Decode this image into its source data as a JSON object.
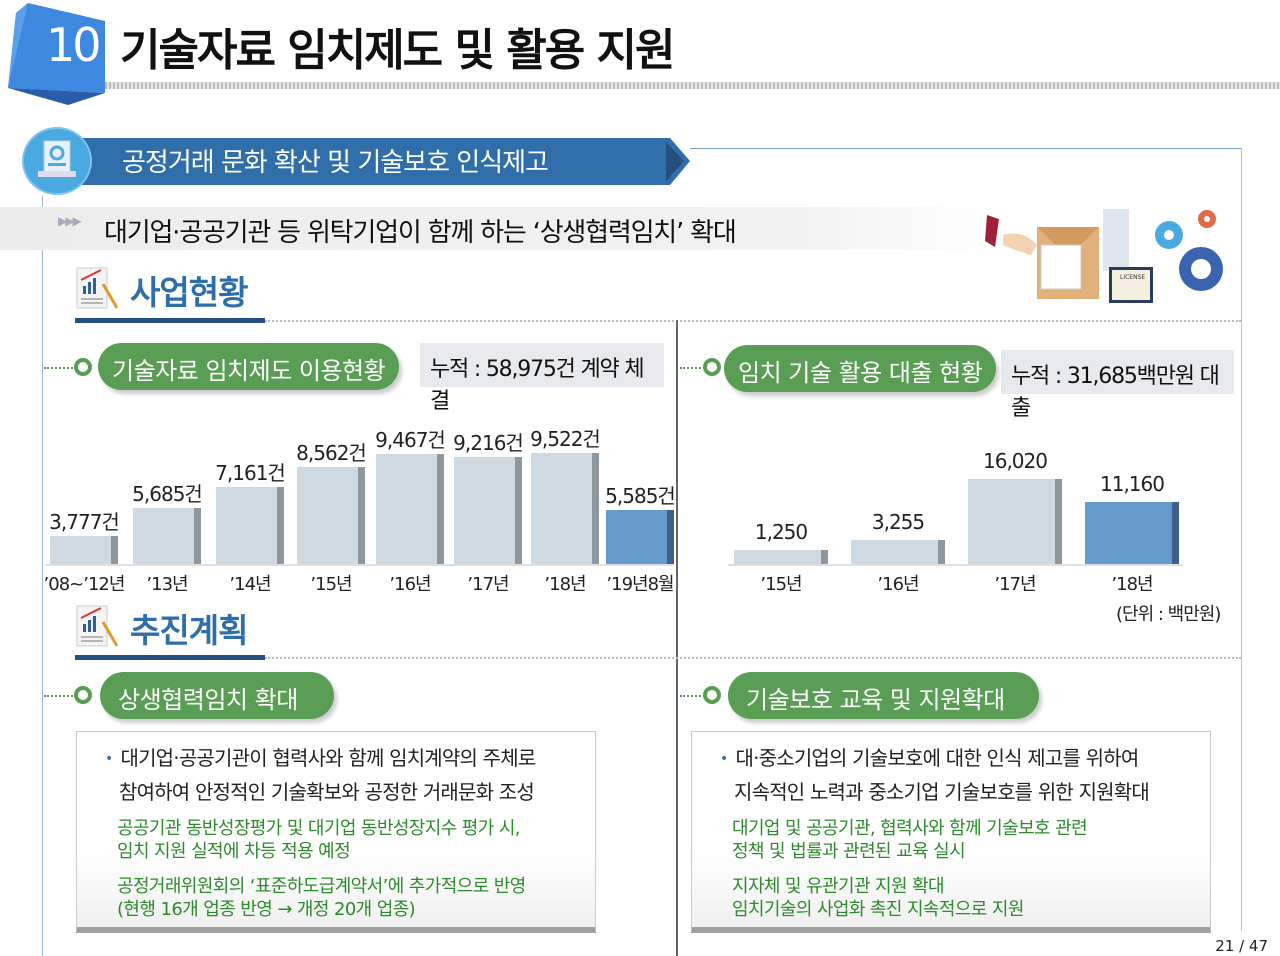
{
  "header": {
    "section_number": "10",
    "title": "기술자료 임치제도 및 활용 지원"
  },
  "banner": {
    "title": "공정거래 문화 확산 및 기술보호 인식제고",
    "icon": "document-chart-icon"
  },
  "subtitle": {
    "arrows": "▶▶▶",
    "text": "대기업·공공기관 등 위탁기업이 함께 하는 ‘상생협력임치’ 확대"
  },
  "illustration": {
    "label": "LICENSE",
    "icon": "license-gears-illustration"
  },
  "status_section": {
    "title": "사업현황"
  },
  "plan_section": {
    "title": "추진계획"
  },
  "colors": {
    "accent_blue": "#2f6ea8",
    "green": "#5a9e55",
    "highlight_bar": "#6699cc",
    "bar": "#cfd9e2"
  },
  "chart_data": [
    {
      "type": "bar",
      "title": "기술자료 임치제도 이용현황",
      "summary": "누적 : 58,975건 계약 체결",
      "categories": [
        "’08~’12년",
        "’13년",
        "’14년",
        "’15년",
        "’16년",
        "’17년",
        "’18년",
        "’19년8월"
      ],
      "values": [
        3777,
        5685,
        7161,
        8562,
        9467,
        9216,
        9522,
        5585
      ],
      "labels": [
        "3,777건",
        "5,685건",
        "7,161건",
        "8,562건",
        "9,467건",
        "9,216건",
        "9,522건",
        "5,585건"
      ],
      "highlight_index": 7,
      "grid": false
    },
    {
      "type": "bar",
      "title": "임치 기술 활용 대출 현황",
      "summary": "누적 : 31,685백만원 대출",
      "categories": [
        "’15년",
        "’16년",
        "’17년",
        "’18년"
      ],
      "values": [
        1250,
        3255,
        16020,
        11160
      ],
      "labels": [
        "1,250",
        "3,255",
        "16,020",
        "11,160"
      ],
      "unit": "(단위 : 백만원)",
      "highlight_index": 3,
      "grid": false
    }
  ],
  "plans": [
    {
      "title": "상생협력임치 확대",
      "main": [
        "대기업·공공기관이 협력사와 함께 임치계약의 주체로",
        "참여하여 안정적인 기술확보와 공정한 거래문화 조성"
      ],
      "details": [
        [
          "공공기관 동반성장평가 및 대기업 동반성장지수 평가 시,",
          "임치 지원 실적에 차등 적용 예정"
        ],
        [
          "공정거래위원회의 ‘표준하도급계약서’에 추가적으로 반영",
          "(현행 16개 업종 반영 → 개정 20개 업종)"
        ]
      ]
    },
    {
      "title": "기술보호 교육 및 지원확대",
      "main": [
        "대·중소기업의 기술보호에 대한 인식 제고를 위하여",
        "지속적인 노력과 중소기업 기술보호를 위한 지원확대"
      ],
      "details": [
        [
          "대기업 및 공공기관, 협력사와 함께 기술보호 관련",
          "정책 및 법률과 관련된 교육 실시"
        ],
        [
          "지자체  및 유관기관 지원 확대",
          "임치기술의 사업화 촉진 지속적으로 지원"
        ]
      ]
    }
  ],
  "page": {
    "indicator": "21 / 47"
  }
}
